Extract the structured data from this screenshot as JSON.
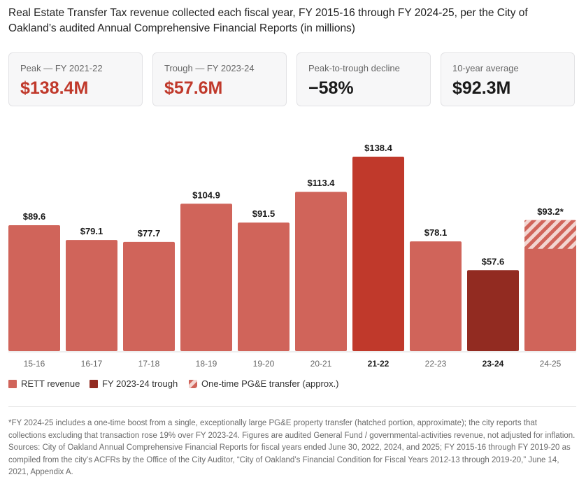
{
  "header": {
    "title": "Real Estate Transfer Tax revenue collected each fiscal year, FY 2015-16 through FY 2024-25, per the City of Oakland’s audited Annual Comprehensive Financial Reports (in millions)"
  },
  "cards": [
    {
      "label": "Peak — FY 2021-22",
      "value": "$138.4M"
    },
    {
      "label": "Trough — FY 2023-24",
      "value": "$57.6M"
    },
    {
      "label": "Peak-to-trough decline",
      "value": "−58%"
    },
    {
      "label": "10-year average",
      "value": "$92.3M"
    }
  ],
  "chart_data": {
    "type": "bar",
    "categories": [
      "15-16",
      "16-17",
      "17-18",
      "18-19",
      "19-20",
      "20-21",
      "21-22",
      "22-23",
      "23-24",
      "24-25"
    ],
    "values": [
      89.6,
      79.1,
      77.7,
      104.9,
      91.5,
      113.4,
      138.4,
      78.1,
      57.6,
      93.2
    ],
    "data_labels": [
      "$89.6",
      "$79.1",
      "$77.7",
      "$104.9",
      "$91.5",
      "$113.4",
      "$138.4",
      "$78.1",
      "$57.6",
      "$93.2*"
    ],
    "highlight": {
      "peak": "21-22",
      "trough": "23-24"
    },
    "one_time_portion": {
      "category": "24-25",
      "approx_base_value": 72.8
    },
    "ylim": [
      0,
      138.4
    ],
    "grid": false,
    "legend_position": "bottom-left",
    "colors": {
      "regular": "#d0645a",
      "peak": "#c0392b",
      "trough": "#922b21",
      "hatch_light": "#f3d6d2"
    }
  },
  "legend": [
    {
      "label": "RETT revenue",
      "color": "#d0645a"
    },
    {
      "label": "FY 2023-24 trough",
      "color": "#922b21"
    },
    {
      "label": "One-time PG&E transfer (approx.)",
      "color": "#d0645a"
    }
  ],
  "footnote": "*FY 2024-25 includes a one-time boost from a single, exceptionally large PG&E property transfer (hatched portion, approximate); the city reports that collections excluding that transaction rose 19% over FY 2023-24. Figures are audited General Fund / governmental-activities revenue, not adjusted for inflation. Sources: City of Oakland Annual Comprehensive Financial Reports for fiscal years ended June 30, 2022, 2024, and 2025; FY 2015-16 through FY 2019-20 as compiled from the city’s ACFRs by the Office of the City Auditor, “City of Oakland’s Financial Condition for Fiscal Years 2012-13 through 2019-20,” June 14, 2021, Appendix A."
}
